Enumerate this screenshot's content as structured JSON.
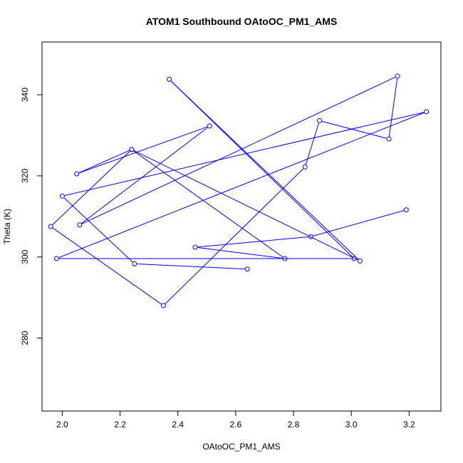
{
  "chart_data": {
    "type": "line",
    "title": "ATOM1 Southbound OAtoOC_PM1_AMS",
    "xlabel": "OAtoOC_PM1_AMS",
    "ylabel": "Theta (K)",
    "xlim": [
      1.93,
      3.31
    ],
    "ylim": [
      262,
      353
    ],
    "xticks": [
      "2.0",
      "2.2",
      "2.4",
      "2.6",
      "2.8",
      "3.0",
      "3.2"
    ],
    "yticks": [
      "280",
      "300",
      "320",
      "340"
    ],
    "grid": false,
    "legend": "none",
    "series_color": "#0000ff",
    "markers": "open-circle",
    "points": [
      {
        "x": 2.64,
        "y": 297.0
      },
      {
        "x": 2.25,
        "y": 298.3
      },
      {
        "x": 2.0,
        "y": 315.0
      },
      {
        "x": 3.26,
        "y": 335.8
      },
      {
        "x": 1.98,
        "y": 299.6
      },
      {
        "x": 3.01,
        "y": 299.6
      },
      {
        "x": 2.37,
        "y": 343.8
      },
      {
        "x": 3.03,
        "y": 299.0
      },
      {
        "x": 2.24,
        "y": 326.5
      },
      {
        "x": 1.96,
        "y": 307.5
      },
      {
        "x": 2.35,
        "y": 288.0
      },
      {
        "x": 2.84,
        "y": 322.2
      },
      {
        "x": 2.89,
        "y": 333.6
      },
      {
        "x": 3.13,
        "y": 329.1
      },
      {
        "x": 3.16,
        "y": 344.6
      },
      {
        "x": 2.06,
        "y": 307.9
      },
      {
        "x": 2.51,
        "y": 332.3
      },
      {
        "x": 2.05,
        "y": 320.5
      },
      {
        "x": 2.24,
        "y": 326.5
      },
      {
        "x": 2.77,
        "y": 299.6
      },
      {
        "x": 2.46,
        "y": 302.4
      },
      {
        "x": 2.86,
        "y": 305.0
      },
      {
        "x": 3.19,
        "y": 311.6
      }
    ]
  }
}
